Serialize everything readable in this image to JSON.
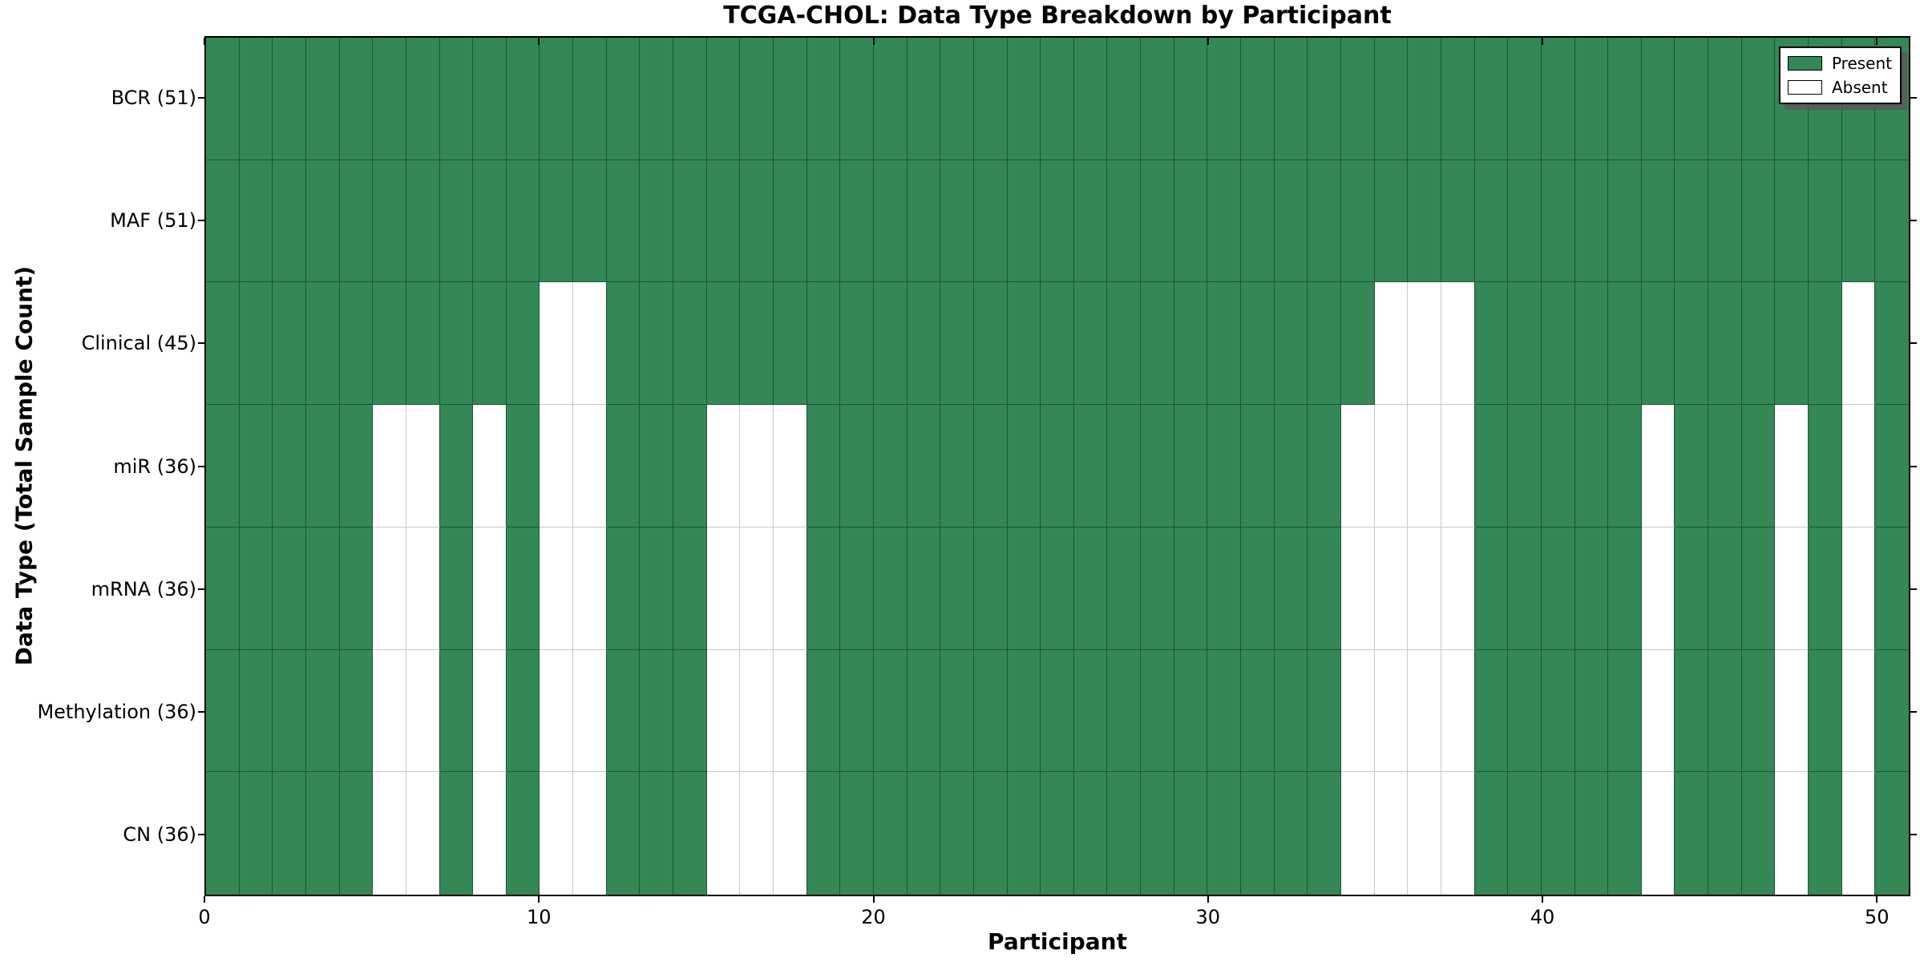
{
  "title": "TCGA-CHOL: Data Type Breakdown by Participant",
  "xlabel": "Participant",
  "ylabel": "Data Type (Total Sample Count)",
  "legend": {
    "present_label": "Present",
    "absent_label": "Absent",
    "position": "upper right"
  },
  "colors": {
    "present": "#338856",
    "absent": "#ffffff",
    "cell_border_present": "#1e5434",
    "cell_border_absent": "#c8c8c8",
    "spine": "#000000",
    "legend_shadow": "#5a5a5a"
  },
  "chart_data": {
    "type": "heatmap",
    "title": "TCGA-CHOL: Data Type Breakdown by Participant",
    "xlabel": "Participant",
    "ylabel": "Data Type (Total Sample Count)",
    "legend_entries": [
      "Present",
      "Absent"
    ],
    "legend_position": "upper right",
    "grid": false,
    "n_participants": 51,
    "x_range": [
      0,
      51
    ],
    "x_tick_values": [
      0,
      10,
      20,
      30,
      40,
      50
    ],
    "x_tick_labels": [
      "0",
      "10",
      "20",
      "30",
      "40",
      "50"
    ],
    "rows": [
      {
        "label": "BCR (51)",
        "name": "BCR",
        "present_count": 51,
        "absent_participants": []
      },
      {
        "label": "MAF (51)",
        "name": "MAF",
        "present_count": 51,
        "absent_participants": []
      },
      {
        "label": "Clinical (45)",
        "name": "Clinical",
        "present_count": 45,
        "absent_participants": [
          10,
          11,
          35,
          36,
          37,
          49
        ]
      },
      {
        "label": "miR (36)",
        "name": "miR",
        "present_count": 36,
        "absent_participants": [
          5,
          6,
          8,
          10,
          11,
          15,
          16,
          17,
          34,
          35,
          36,
          37,
          43,
          47,
          49
        ]
      },
      {
        "label": "mRNA (36)",
        "name": "mRNA",
        "present_count": 36,
        "absent_participants": [
          5,
          6,
          8,
          10,
          11,
          15,
          16,
          17,
          34,
          35,
          36,
          37,
          43,
          47,
          49
        ]
      },
      {
        "label": "Methylation (36)",
        "name": "Methylation",
        "present_count": 36,
        "absent_participants": [
          5,
          6,
          8,
          10,
          11,
          15,
          16,
          17,
          34,
          35,
          36,
          37,
          43,
          47,
          49
        ]
      },
      {
        "label": "CN (36)",
        "name": "CN",
        "present_count": 36,
        "absent_participants": [
          5,
          6,
          8,
          10,
          11,
          15,
          16,
          17,
          34,
          35,
          36,
          37,
          43,
          47,
          49
        ]
      }
    ]
  }
}
